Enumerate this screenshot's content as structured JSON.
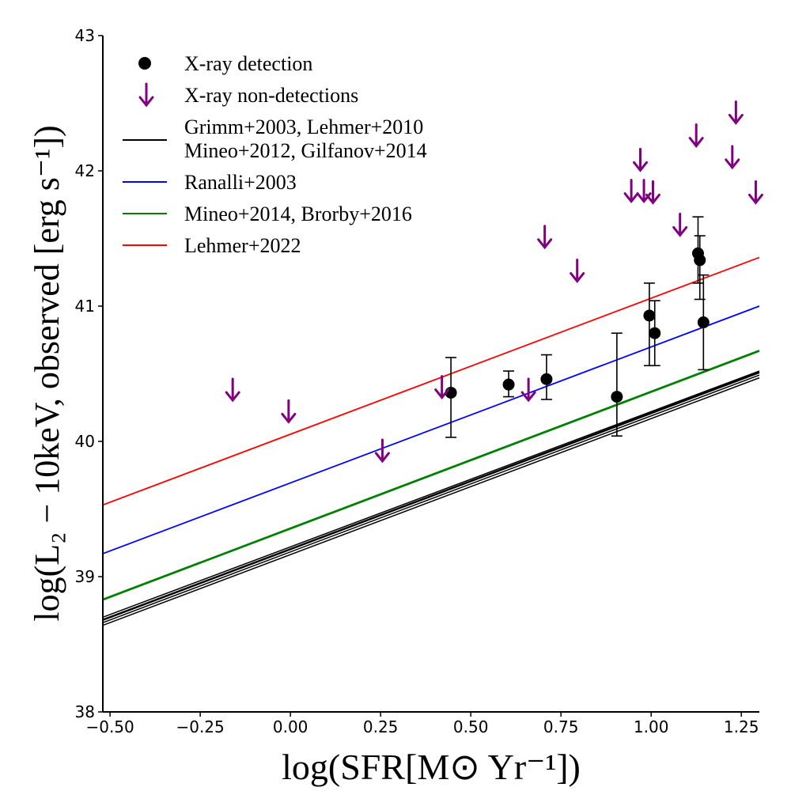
{
  "chart_data": {
    "type": "scatter",
    "title": "",
    "xlabel": "log(SFR[M⊙ Yr⁻¹])",
    "ylabel": "log(L₂ − 10keV, observed [erg s⁻¹])",
    "xlim": [
      -0.52,
      1.3
    ],
    "ylim": [
      38,
      43
    ],
    "x_ticks": [
      -0.5,
      -0.25,
      0.0,
      0.25,
      0.5,
      0.75,
      1.0,
      1.25
    ],
    "x_tick_labels": [
      "−0.50",
      "−0.25",
      "0.00",
      "0.25",
      "0.50",
      "0.75",
      "1.00",
      "1.25"
    ],
    "y_ticks": [
      38,
      39,
      40,
      41,
      42,
      43
    ],
    "y_tick_labels": [
      "38",
      "39",
      "40",
      "41",
      "42",
      "43"
    ],
    "grid": false,
    "legend_position": "top-left",
    "legend": [
      {
        "label": "X-ray detection",
        "marker": "circle",
        "color": "#000000"
      },
      {
        "label": "X-ray non-detections",
        "marker": "down-arrow",
        "color": "#800080"
      },
      {
        "label": "Grimm+2003, Lehmer+2010",
        "label2": "Mineo+2012, Gilfanov+2014",
        "marker": "line",
        "color": "#000000"
      },
      {
        "label": "Ranalli+2003",
        "marker": "line",
        "color": "#0000ff"
      },
      {
        "label": "Mineo+2014, Brorby+2016",
        "marker": "line",
        "color": "#008000"
      },
      {
        "label": "Lehmer+2022",
        "marker": "line",
        "color": "#ff0000"
      }
    ],
    "relations": [
      {
        "name": "Grimm+2003",
        "color": "#000000",
        "x": [
          -0.52,
          1.3
        ],
        "y": [
          38.64,
          40.47
        ],
        "width": 1.5
      },
      {
        "name": "Lehmer+2010",
        "color": "#000000",
        "x": [
          -0.52,
          1.3
        ],
        "y": [
          38.66,
          40.49
        ],
        "width": 1.5
      },
      {
        "name": "Mineo+2012",
        "color": "#000000",
        "x": [
          -0.52,
          1.3
        ],
        "y": [
          38.68,
          40.51
        ],
        "width": 2.5
      },
      {
        "name": "Gilfanov+2014",
        "color": "#000000",
        "x": [
          -0.52,
          1.3
        ],
        "y": [
          38.7,
          40.52
        ],
        "width": 1.5
      },
      {
        "name": "Ranalli+2003",
        "color": "#0000ff",
        "x": [
          -0.52,
          1.3
        ],
        "y": [
          39.17,
          41.0
        ],
        "width": 1.8
      },
      {
        "name": "Mineo+2014, Brorby+2016",
        "color": "#008000",
        "x": [
          -0.52,
          1.3
        ],
        "y": [
          38.83,
          40.67
        ],
        "width": 2.8
      },
      {
        "name": "Lehmer+2022",
        "color": "#ff0000",
        "x": [
          -0.52,
          1.3
        ],
        "y": [
          39.53,
          41.36
        ],
        "width": 1.8
      }
    ],
    "detections": [
      {
        "x": 0.445,
        "y": 40.36,
        "ylo": 40.03,
        "yhi": 40.62
      },
      {
        "x": 0.605,
        "y": 40.42,
        "ylo": 40.33,
        "yhi": 40.52
      },
      {
        "x": 0.71,
        "y": 40.46,
        "ylo": 40.31,
        "yhi": 40.64
      },
      {
        "x": 0.905,
        "y": 40.33,
        "ylo": 40.04,
        "yhi": 40.8
      },
      {
        "x": 0.995,
        "y": 40.93,
        "ylo": 40.56,
        "yhi": 41.17
      },
      {
        "x": 1.01,
        "y": 40.8,
        "ylo": 40.56,
        "yhi": 41.04
      },
      {
        "x": 1.13,
        "y": 41.39,
        "ylo": 41.17,
        "yhi": 41.66
      },
      {
        "x": 1.135,
        "y": 41.34,
        "ylo": 41.05,
        "yhi": 41.52
      },
      {
        "x": 1.145,
        "y": 40.88,
        "ylo": 40.53,
        "yhi": 41.23
      }
    ],
    "non_detections": [
      {
        "x": -0.16,
        "y": 40.38
      },
      {
        "x": -0.005,
        "y": 40.22
      },
      {
        "x": 0.255,
        "y": 39.93
      },
      {
        "x": 0.42,
        "y": 40.4
      },
      {
        "x": 0.66,
        "y": 40.38
      },
      {
        "x": 0.705,
        "y": 41.51
      },
      {
        "x": 0.795,
        "y": 41.26
      },
      {
        "x": 0.945,
        "y": 41.85
      },
      {
        "x": 0.97,
        "y": 42.08
      },
      {
        "x": 0.98,
        "y": 41.85
      },
      {
        "x": 1.005,
        "y": 41.84
      },
      {
        "x": 1.08,
        "y": 41.6
      },
      {
        "x": 1.125,
        "y": 42.26
      },
      {
        "x": 1.225,
        "y": 42.1
      },
      {
        "x": 1.235,
        "y": 42.43
      },
      {
        "x": 1.29,
        "y": 41.84
      }
    ]
  }
}
